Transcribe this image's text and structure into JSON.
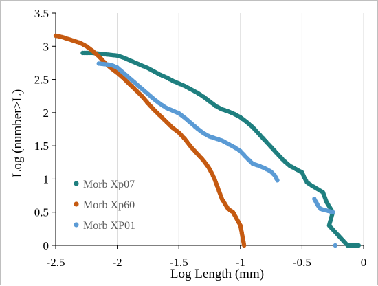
{
  "chart_data": {
    "type": "scatter",
    "title": "",
    "xlabel": "Log Length (mm)",
    "ylabel": "Log (number>L)",
    "xlim": [
      -2.5,
      0
    ],
    "ylim": [
      0,
      3.5
    ],
    "xticks": [
      -2.5,
      -2,
      -1.5,
      -1,
      -0.5,
      0
    ],
    "xtick_labels": [
      "-2.5",
      "-2",
      "-1.5",
      "-1",
      "-0.5",
      "0"
    ],
    "yticks": [
      0,
      0.5,
      1,
      1.5,
      2,
      2.5,
      3,
      3.5
    ],
    "ytick_labels": [
      "0",
      "0.5",
      "1",
      "1.5",
      "2",
      "2.5",
      "3",
      "3.5"
    ],
    "grid": "vertical",
    "legend_position": "bottom-left",
    "series": [
      {
        "name": "Morb Xp07",
        "color": "#1f7f7f",
        "points": [
          [
            -2.28,
            2.9
          ],
          [
            -2.2,
            2.9
          ],
          [
            -2.15,
            2.89
          ],
          [
            -2.1,
            2.88
          ],
          [
            -2.05,
            2.87
          ],
          [
            -2.0,
            2.86
          ],
          [
            -1.95,
            2.83
          ],
          [
            -1.9,
            2.79
          ],
          [
            -1.85,
            2.75
          ],
          [
            -1.8,
            2.71
          ],
          [
            -1.75,
            2.67
          ],
          [
            -1.7,
            2.62
          ],
          [
            -1.65,
            2.57
          ],
          [
            -1.6,
            2.53
          ],
          [
            -1.55,
            2.48
          ],
          [
            -1.5,
            2.44
          ],
          [
            -1.45,
            2.4
          ],
          [
            -1.4,
            2.35
          ],
          [
            -1.35,
            2.3
          ],
          [
            -1.3,
            2.24
          ],
          [
            -1.25,
            2.17
          ],
          [
            -1.2,
            2.1
          ],
          [
            -1.15,
            2.05
          ],
          [
            -1.1,
            2.02
          ],
          [
            -1.05,
            1.98
          ],
          [
            -1.0,
            1.93
          ],
          [
            -0.95,
            1.86
          ],
          [
            -0.9,
            1.78
          ],
          [
            -0.85,
            1.68
          ],
          [
            -0.8,
            1.58
          ],
          [
            -0.75,
            1.48
          ],
          [
            -0.7,
            1.38
          ],
          [
            -0.65,
            1.28
          ],
          [
            -0.6,
            1.2
          ],
          [
            -0.55,
            1.15
          ],
          [
            -0.5,
            1.1
          ],
          [
            -0.48,
            1.02
          ],
          [
            -0.46,
            0.95
          ],
          [
            -0.42,
            0.9
          ],
          [
            -0.33,
            0.8
          ],
          [
            -0.3,
            0.65
          ],
          [
            -0.25,
            0.5
          ],
          [
            -0.28,
            0.3
          ],
          [
            -0.13,
            0.0
          ],
          [
            -0.04,
            0.0
          ]
        ]
      },
      {
        "name": "Morb Xp60",
        "color": "#c55a11",
        "points": [
          [
            -2.5,
            3.16
          ],
          [
            -2.45,
            3.14
          ],
          [
            -2.4,
            3.11
          ],
          [
            -2.35,
            3.08
          ],
          [
            -2.3,
            3.05
          ],
          [
            -2.25,
            3.0
          ],
          [
            -2.2,
            2.93
          ],
          [
            -2.15,
            2.85
          ],
          [
            -2.1,
            2.75
          ],
          [
            -2.05,
            2.67
          ],
          [
            -2.0,
            2.6
          ],
          [
            -1.95,
            2.52
          ],
          [
            -1.9,
            2.43
          ],
          [
            -1.85,
            2.34
          ],
          [
            -1.8,
            2.25
          ],
          [
            -1.75,
            2.14
          ],
          [
            -1.7,
            2.04
          ],
          [
            -1.65,
            1.95
          ],
          [
            -1.6,
            1.86
          ],
          [
            -1.55,
            1.77
          ],
          [
            -1.5,
            1.7
          ],
          [
            -1.45,
            1.6
          ],
          [
            -1.4,
            1.48
          ],
          [
            -1.35,
            1.38
          ],
          [
            -1.3,
            1.28
          ],
          [
            -1.26,
            1.18
          ],
          [
            -1.23,
            1.08
          ],
          [
            -1.21,
            1.0
          ],
          [
            -1.19,
            0.9
          ],
          [
            -1.17,
            0.8
          ],
          [
            -1.15,
            0.7
          ],
          [
            -1.1,
            0.55
          ],
          [
            -1.06,
            0.5
          ],
          [
            -1.0,
            0.3
          ],
          [
            -0.97,
            0.0
          ]
        ]
      },
      {
        "name": "Morb XP01",
        "color": "#5b9bd5",
        "points": [
          [
            -2.15,
            2.74
          ],
          [
            -2.1,
            2.73
          ],
          [
            -2.05,
            2.72
          ],
          [
            -2.0,
            2.68
          ],
          [
            -1.95,
            2.6
          ],
          [
            -1.9,
            2.52
          ],
          [
            -1.85,
            2.44
          ],
          [
            -1.8,
            2.36
          ],
          [
            -1.75,
            2.28
          ],
          [
            -1.7,
            2.2
          ],
          [
            -1.65,
            2.13
          ],
          [
            -1.6,
            2.07
          ],
          [
            -1.55,
            2.03
          ],
          [
            -1.5,
            1.99
          ],
          [
            -1.45,
            1.92
          ],
          [
            -1.4,
            1.84
          ],
          [
            -1.35,
            1.76
          ],
          [
            -1.3,
            1.69
          ],
          [
            -1.25,
            1.64
          ],
          [
            -1.2,
            1.61
          ],
          [
            -1.15,
            1.58
          ],
          [
            -1.1,
            1.53
          ],
          [
            -1.05,
            1.48
          ],
          [
            -1.0,
            1.42
          ],
          [
            -0.95,
            1.32
          ],
          [
            -0.9,
            1.23
          ],
          [
            -0.85,
            1.2
          ],
          [
            -0.8,
            1.16
          ],
          [
            -0.75,
            1.11
          ],
          [
            -0.72,
            1.05
          ],
          [
            -0.7,
            0.98
          ],
          [
            -0.4,
            0.7
          ],
          [
            -0.37,
            0.6
          ],
          [
            -0.35,
            0.55
          ],
          [
            -0.25,
            0.5
          ],
          [
            -0.23,
            0.0
          ]
        ]
      }
    ]
  }
}
